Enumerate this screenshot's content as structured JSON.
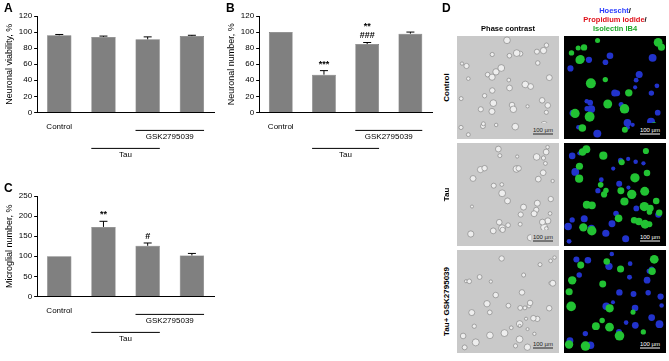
{
  "chart_data": [
    {
      "panel": "A",
      "type": "bar",
      "y_label": "Neuronal viability, %",
      "categories": [
        "Control",
        null,
        null,
        null
      ],
      "values": [
        96,
        94,
        91,
        95
      ],
      "errors": [
        1,
        1,
        3,
        1
      ],
      "color": "#808080",
      "ylim": [
        0,
        120
      ],
      "yticks": [
        0,
        20,
        40,
        60,
        80,
        100,
        120
      ],
      "grid": false,
      "groups": [
        {
          "label": "GSK2795039",
          "categories": [
            2,
            3
          ]
        },
        {
          "label": "Tau",
          "categories": [
            1,
            2
          ]
        }
      ],
      "annotations": []
    },
    {
      "panel": "B",
      "type": "bar",
      "y_label": "Neuronal number, %",
      "categories": [
        "Control",
        null,
        null,
        null
      ],
      "values": [
        100,
        47,
        85,
        98
      ],
      "errors": [
        0,
        5,
        2,
        2
      ],
      "color": "#808080",
      "ylim": [
        0,
        120
      ],
      "yticks": [
        0,
        20,
        40,
        60,
        80,
        100,
        120
      ],
      "grid": false,
      "groups": [
        {
          "label": "GSK2795039",
          "categories": [
            2,
            3
          ]
        },
        {
          "label": "Tau",
          "categories": [
            1,
            2
          ]
        }
      ],
      "annotations": [
        {
          "category": 1,
          "lines": [
            "***"
          ]
        },
        {
          "category": 2,
          "lines": [
            "**",
            "###"
          ]
        }
      ]
    },
    {
      "panel": "C",
      "type": "bar",
      "y_label": "Microglial number, %",
      "categories": [
        "Control",
        null,
        null,
        null
      ],
      "values": [
        100,
        173,
        126,
        102
      ],
      "errors": [
        0,
        14,
        7,
        5
      ],
      "color": "#808080",
      "ylim": [
        0,
        250
      ],
      "yticks": [
        0,
        50,
        100,
        150,
        200,
        250
      ],
      "grid": false,
      "groups": [
        {
          "label": "GSK2795039",
          "categories": [
            2,
            3
          ]
        },
        {
          "label": "Tau",
          "categories": [
            1,
            2
          ]
        }
      ],
      "annotations": [
        {
          "category": 1,
          "lines": [
            "**"
          ]
        },
        {
          "category": 2,
          "lines": [
            "#"
          ]
        }
      ]
    }
  ],
  "panel_d": {
    "letter": "D",
    "columns": [
      [
        {
          "text": "Phase contrast"
        }
      ],
      [
        {
          "text": "Hoescht",
          "color": "#2a3cff"
        },
        {
          "text": "/"
        },
        {
          "text": "Propidium iodide",
          "color": "#e0101a"
        },
        {
          "text": "/"
        },
        {
          "text": "Isolectin IB4",
          "color": "#1fa82a"
        }
      ]
    ],
    "rows": [
      "Control",
      "Tau",
      "Tau+ GSK2795039"
    ],
    "scale_bar": "100 µm"
  }
}
